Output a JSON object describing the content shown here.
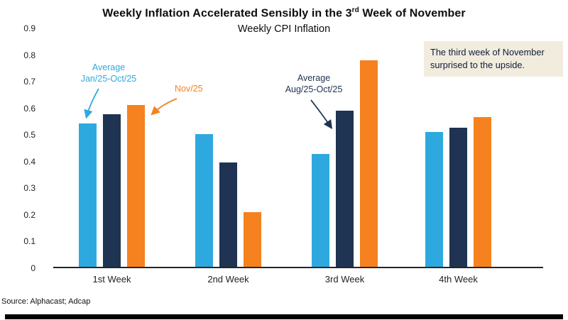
{
  "title": {
    "part1": "Weekly Inflation Accelerated Sensibly in the 3",
    "superscript": "rd",
    "part2": " Week of November"
  },
  "subtitle": "Weekly CPI Inflation",
  "note": {
    "text": "The third week of November surprised to the upside."
  },
  "source": {
    "text": "Source: Alphacast; Adcap"
  },
  "annotations": {
    "avg_jan": {
      "line1": "Average",
      "line2": "Jan/25-Oct/25"
    },
    "nov": {
      "label": "Nov/25"
    },
    "avg_aug": {
      "line1": "Average",
      "line2": "Aug/25-Oct/25"
    }
  },
  "colors": {
    "light_blue": "#2EA9E0",
    "navy": "#1F3352",
    "orange": "#F5821F",
    "note_background": "#F1ECDE",
    "axis": "#262626"
  },
  "chart_data": {
    "type": "bar",
    "title": "Weekly Inflation Accelerated Sensibly in the 3rd Week of November",
    "subtitle": "Weekly CPI Inflation",
    "categories": [
      "1st Week",
      "2nd Week",
      "3rd Week",
      "4th Week"
    ],
    "series": [
      {
        "name": "Average Jan/25-Oct/25",
        "key": "avg-jan25-oct25",
        "color": "#2EA9E0",
        "values": [
          0.54,
          0.5,
          0.425,
          0.51
        ]
      },
      {
        "name": "Average Aug/25-Oct/25",
        "key": "avg-aug25-oct25",
        "color": "#1F3352",
        "values": [
          0.575,
          0.395,
          0.59,
          0.525
        ]
      },
      {
        "name": "Nov/25",
        "key": "nov25",
        "color": "#F5821F",
        "values": [
          0.61,
          0.205,
          0.78,
          0.565
        ]
      }
    ],
    "ylim": [
      0,
      0.9
    ],
    "y_tick_labels": [
      "0",
      "0.1",
      "0.2",
      "0.3",
      "0.4",
      "0.5",
      "0.6",
      "0.7",
      "0.8",
      "0.9"
    ],
    "grid": false,
    "legend_position": "none (series identified by arrow annotations)"
  }
}
